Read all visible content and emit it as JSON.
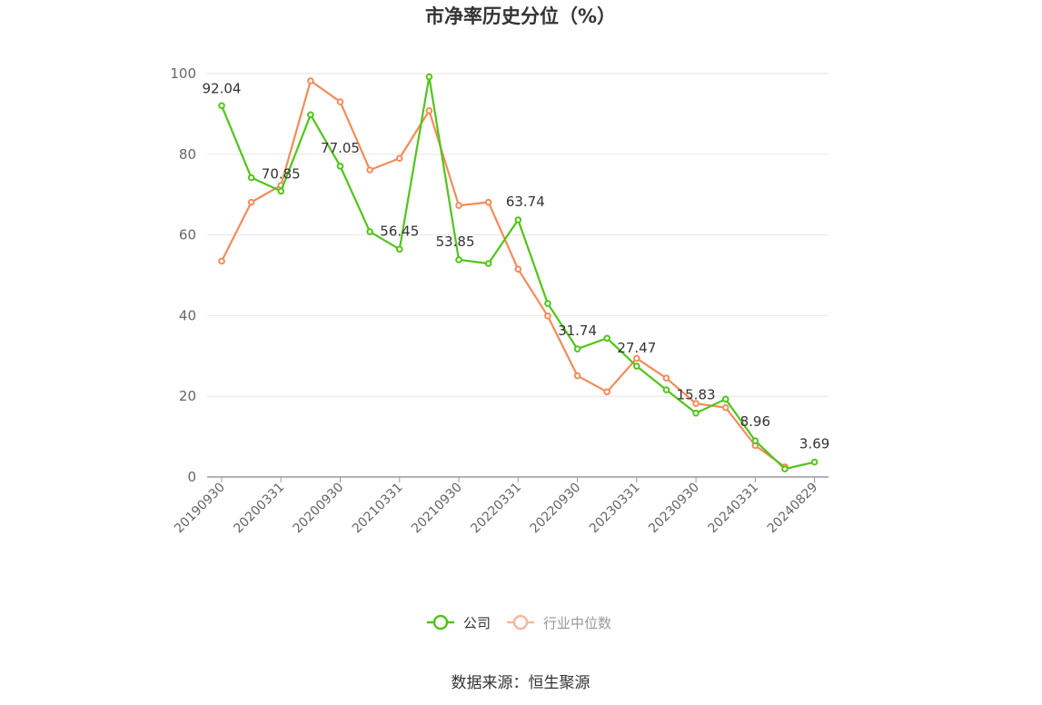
{
  "chart_data": {
    "type": "line",
    "title": "市净率历史分位（%）",
    "xlabel": "",
    "ylabel": "",
    "ylim": [
      0,
      100
    ],
    "yticks": [
      0,
      20,
      40,
      60,
      80,
      100
    ],
    "grid": true,
    "legend_position": "bottom",
    "x_tick_labels": [
      "20190930",
      "20200331",
      "20200930",
      "20210331",
      "20210930",
      "20220331",
      "20220930",
      "20230331",
      "20230930",
      "20240331",
      "20240829"
    ],
    "series": [
      {
        "name": "公司",
        "color": "#52c41a",
        "values": [
          92.04,
          74.2,
          70.85,
          89.8,
          77.05,
          60.8,
          56.45,
          99.2,
          53.85,
          52.9,
          63.74,
          43.0,
          31.74,
          34.4,
          27.47,
          21.6,
          15.83,
          19.3,
          8.96,
          2.0,
          3.69
        ],
        "data_labels": [
          {
            "index": 0,
            "text": "92.04"
          },
          {
            "index": 2,
            "text": "70.85"
          },
          {
            "index": 4,
            "text": "77.05"
          },
          {
            "index": 6,
            "text": "56.45"
          },
          {
            "index": 8,
            "text": "53.85"
          },
          {
            "index": 10,
            "text": "63.74"
          },
          {
            "index": 12,
            "text": "31.74"
          },
          {
            "index": 14,
            "text": "27.47"
          },
          {
            "index": 16,
            "text": "15.83"
          },
          {
            "index": 18,
            "text": "8.96"
          },
          {
            "index": 20,
            "text": "3.69"
          }
        ]
      },
      {
        "name": "行业中位数",
        "color": "#f28c5a",
        "values": [
          53.5,
          68.1,
          72.3,
          98.2,
          93.0,
          76.1,
          79.0,
          90.8,
          67.3,
          68.1,
          51.5,
          39.9,
          25.1,
          21.1,
          29.4,
          24.5,
          18.2,
          17.2,
          7.8,
          2.5,
          null
        ]
      }
    ]
  },
  "legend": {
    "items": [
      {
        "label": "公司",
        "color": "#52c41a",
        "text_color": "#333333"
      },
      {
        "label": "行业中位数",
        "color": "#f9b79a",
        "text_color": "#999999"
      }
    ]
  },
  "source": "数据来源：恒生聚源"
}
